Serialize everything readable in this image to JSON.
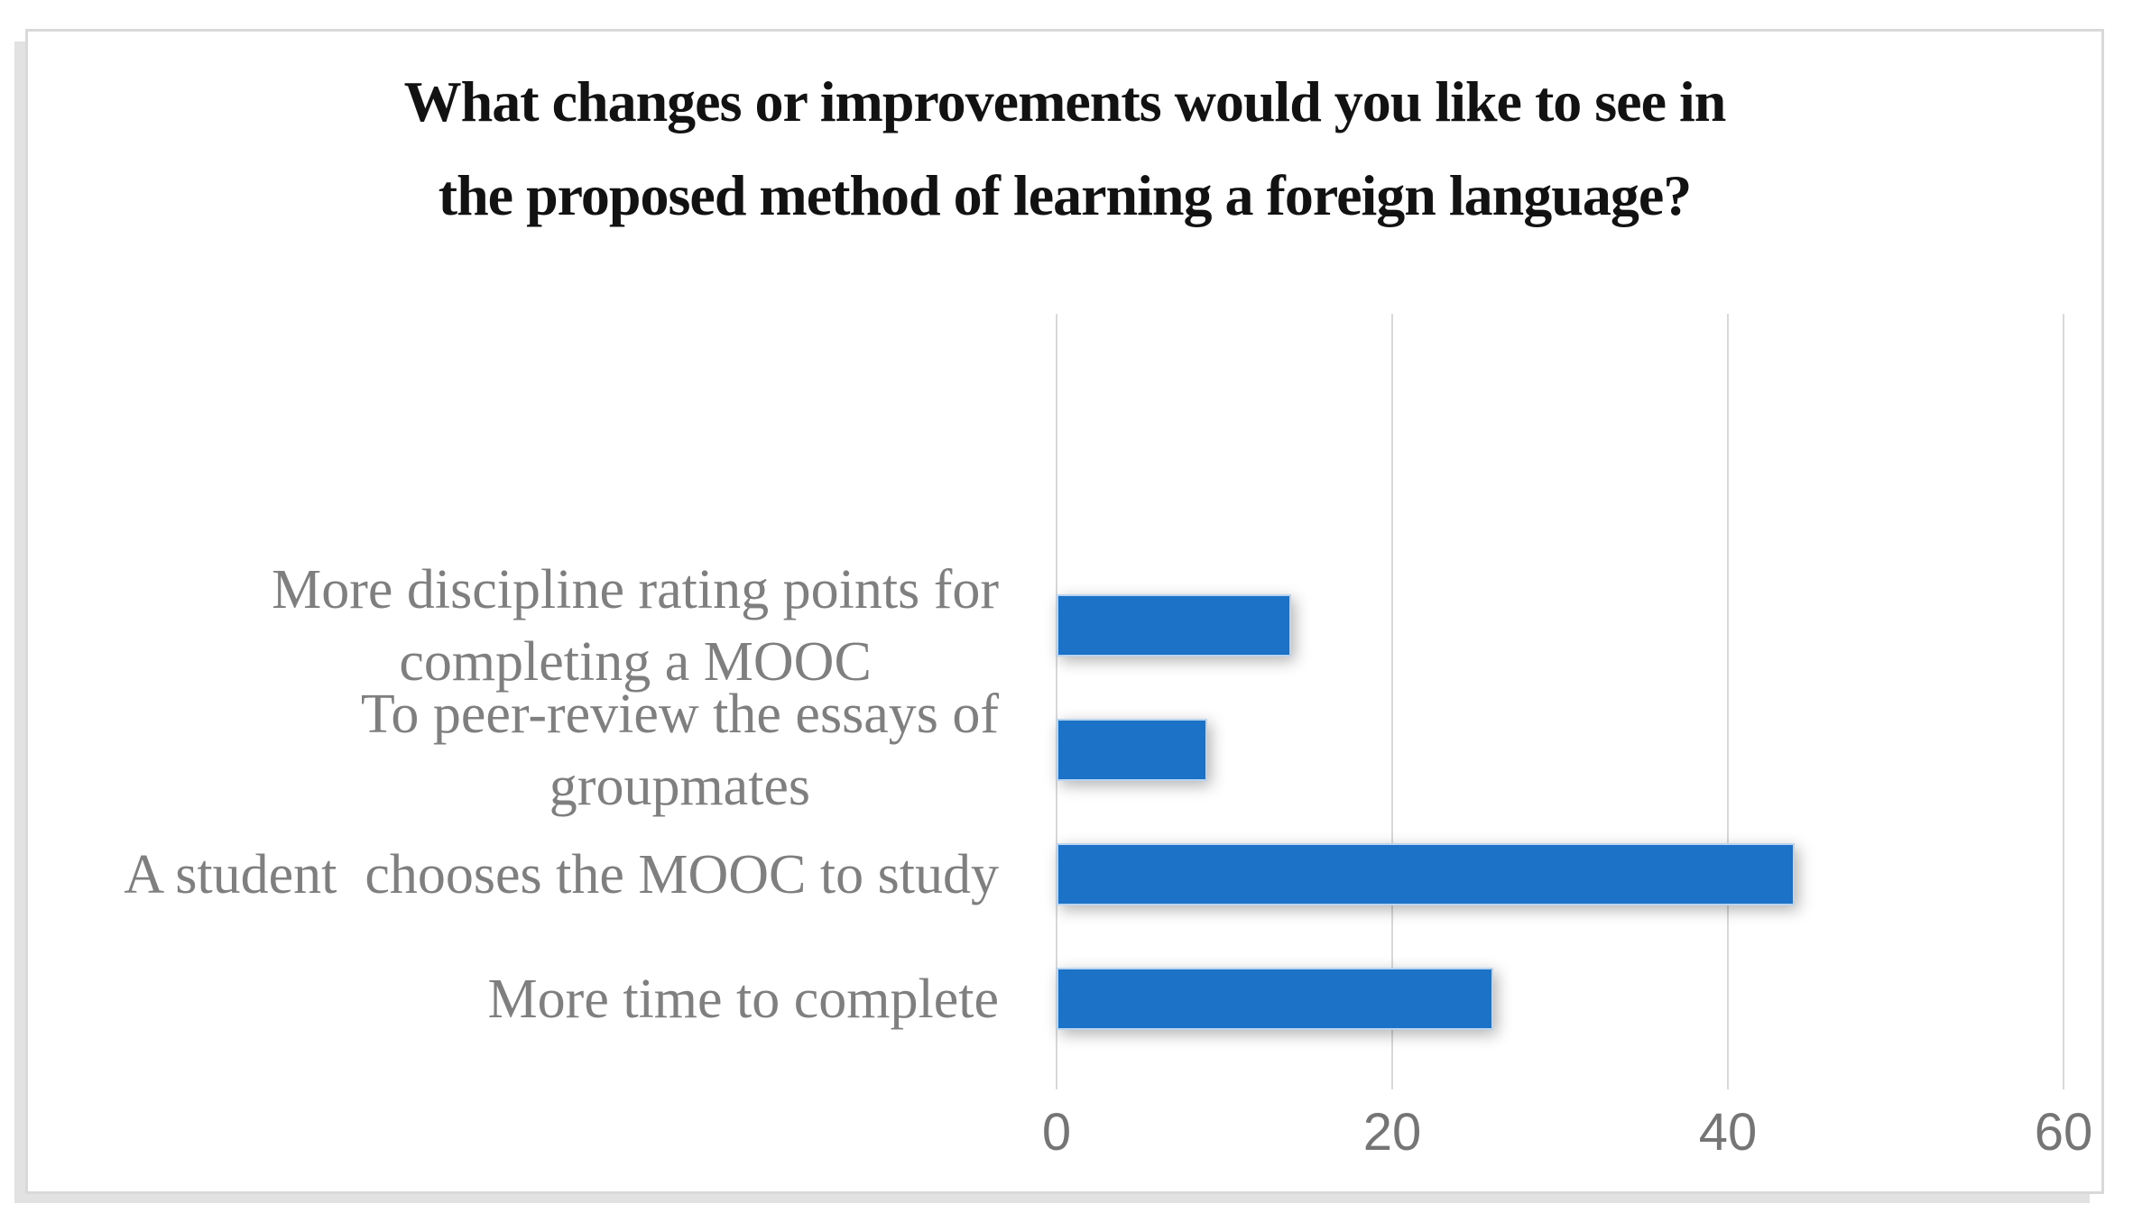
{
  "figure": {
    "background": "#FFFFFF",
    "frame_border_color": "#D9D9D9"
  },
  "chart_data": {
    "type": "bar",
    "orientation": "horizontal",
    "title": "What changes or improvements would you like to see in\nthe proposed method of learning a foreign language?",
    "categories": [
      "More discipline rating points for completing a MOOC",
      "To peer-review the essays of groupmates",
      "A student  chooses the MOOC to study",
      "More time to complete"
    ],
    "categories_display": [
      "More discipline rating points for\ncompleting a MOOC",
      "To peer-review the essays of\ngroupmates",
      "A student  chooses the MOOC to study",
      "More time to complete"
    ],
    "values": [
      14,
      9,
      44,
      26
    ],
    "x_ticks": [
      0,
      20,
      40,
      60
    ],
    "xlim": [
      0,
      60
    ],
    "xlabel": "",
    "ylabel": "",
    "grid": "vertical-only",
    "legend": "none",
    "bar_color": "#1B72C7",
    "gridline_color": "#D9D9D9",
    "category_label_color": "#7F7F7F",
    "tick_label_color": "#757575",
    "title_color": "#121212"
  }
}
